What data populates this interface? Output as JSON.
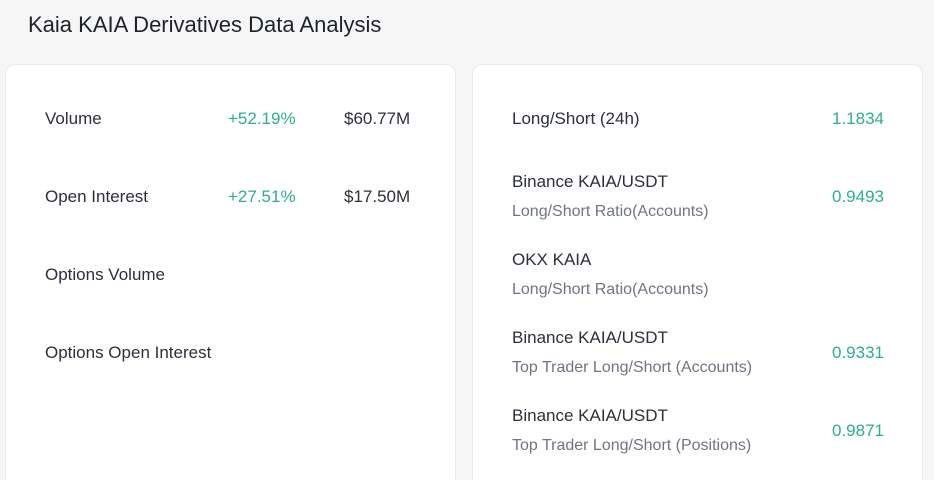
{
  "page": {
    "title": "Kaia KAIA Derivatives Data Analysis"
  },
  "left_panel": {
    "rows": [
      {
        "label": "Volume",
        "change": "+52.19%",
        "amount": "$60.77M"
      },
      {
        "label": "Open Interest",
        "change": "+27.51%",
        "amount": "$17.50M"
      },
      {
        "label": "Options Volume"
      },
      {
        "label": "Options Open Interest"
      }
    ]
  },
  "right_panel": {
    "rows": [
      {
        "label": "Long/Short (24h)",
        "value": "1.1834"
      },
      {
        "label": "Binance KAIA/USDT",
        "sublabel": "Long/Short Ratio(Accounts)",
        "value": "0.9493"
      },
      {
        "label": "OKX KAIA",
        "sublabel": "Long/Short Ratio(Accounts)"
      },
      {
        "label": "Binance KAIA/USDT",
        "sublabel": "Top Trader Long/Short (Accounts)",
        "value": "0.9331"
      },
      {
        "label": "Binance KAIA/USDT",
        "sublabel": "Top Trader Long/Short (Positions)",
        "value": "0.9871"
      }
    ]
  },
  "colors": {
    "positive": "#2ead8f",
    "text": "#2b3039",
    "muted": "#6f7580",
    "background": "#f6f6f7"
  }
}
